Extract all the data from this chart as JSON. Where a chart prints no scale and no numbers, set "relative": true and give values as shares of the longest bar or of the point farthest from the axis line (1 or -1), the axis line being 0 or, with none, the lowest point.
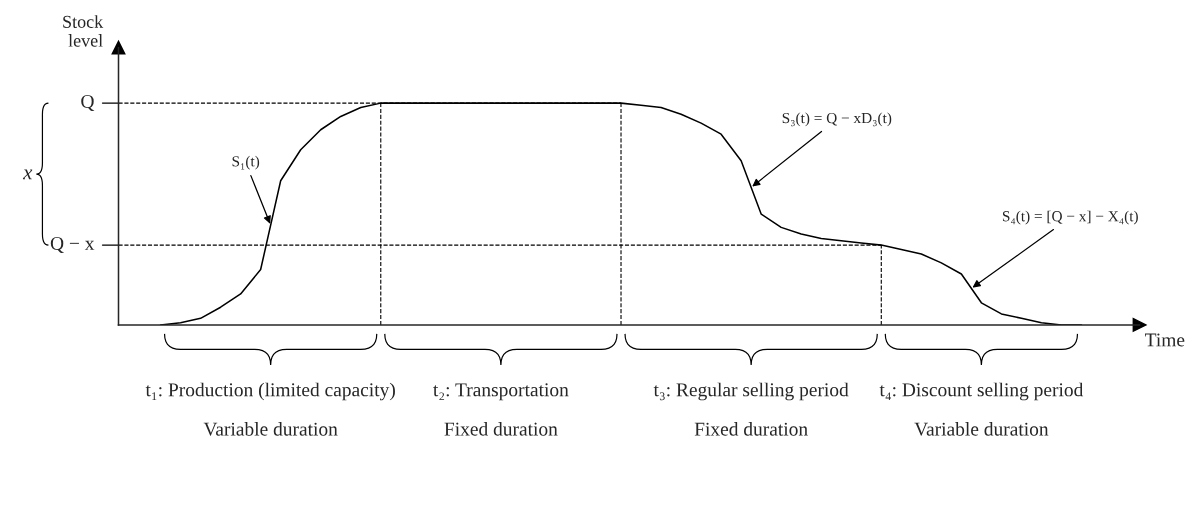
{
  "chart_data": {
    "type": "line",
    "relative": true,
    "xlabel": "Time",
    "ylabel": "Stock\nlevel",
    "color": "#000000",
    "categories": [
      null,
      null,
      null,
      null,
      null,
      null,
      null,
      null,
      null,
      null,
      null,
      null,
      null,
      null,
      null,
      null,
      null,
      null,
      null,
      null,
      null,
      null,
      null,
      null,
      null,
      null,
      null,
      null,
      null,
      null,
      null,
      null,
      null,
      null,
      null,
      null,
      null,
      null,
      null,
      null,
      null,
      null,
      null,
      null,
      null,
      null,
      null
    ],
    "values": [
      0,
      0.01,
      0.03,
      0.08,
      0.14,
      0.25,
      0.65,
      0.79,
      0.88,
      0.94,
      0.98,
      1.0,
      1.0,
      1.0,
      1.0,
      1.0,
      1.0,
      1.0,
      1.0,
      1.0,
      1.0,
      1.0,
      1.0,
      1.0,
      0.99,
      0.98,
      0.95,
      0.91,
      0.86,
      0.74,
      0.5,
      0.44,
      0.41,
      0.39,
      0.38,
      0.37,
      0.36,
      0.34,
      0.32,
      0.28,
      0.23,
      0.1,
      0.05,
      0.03,
      0.01,
      0,
      0
    ],
    "ref_lines": [
      {
        "axis": "y",
        "value": 1.0,
        "label": "Q",
        "line_style": "dashed"
      },
      {
        "axis": "y",
        "value": 0.36,
        "label": "Q − x",
        "line_style": "dashed"
      }
    ],
    "annotations": [
      "S₁(t)",
      "S₃(t) = Q − xD₃(t)",
      "S₄(t) = [Q − x] − X₄(t)",
      "x",
      "t₁: Production (limited capacity)\n\nVariable duration",
      "t₂: Transportation\n\nFixed duration",
      "t₃: Regular selling period\n\nFixed duration",
      "t₄: Discount selling period\n\nVariable duration"
    ]
  }
}
